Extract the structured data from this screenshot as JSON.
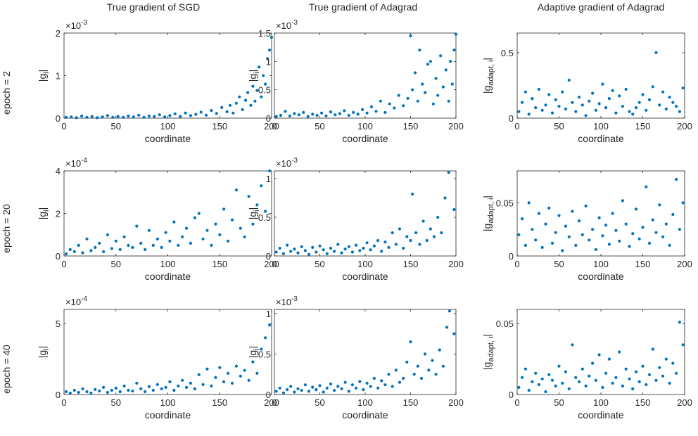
{
  "figure": {
    "column_titles": [
      "True gradient of SGD",
      "True gradient of Adagrad",
      "Adaptive gradient of Adagrad"
    ],
    "row_labels": [
      "epoch = 2",
      "epoch = 20",
      "epoch = 40"
    ],
    "colors": {
      "marker": "#0072BD",
      "axis": "#262626",
      "text": "#262626"
    }
  },
  "chart_data": [
    {
      "id": "r0c0",
      "type": "scatter",
      "title": "True gradient of SGD",
      "row_label": "epoch = 2",
      "xlabel": "coordinate",
      "ylabel": "|g_i|",
      "xlim": [
        0,
        200
      ],
      "xticks": [
        0,
        50,
        100,
        150,
        200
      ],
      "ylim": [
        0,
        2
      ],
      "yticks": [
        0,
        1,
        2
      ],
      "ytick_labels": [
        "0",
        "1",
        "2"
      ],
      "exponent": "-3",
      "x": [
        2,
        7,
        12,
        17,
        22,
        27,
        32,
        37,
        42,
        47,
        52,
        57,
        62,
        67,
        72,
        77,
        82,
        87,
        92,
        97,
        102,
        107,
        112,
        117,
        122,
        127,
        132,
        137,
        142,
        147,
        152,
        157,
        160,
        163,
        166,
        169,
        172,
        175,
        177,
        180,
        182,
        184,
        186,
        188,
        190,
        192,
        194,
        196,
        198,
        200
      ],
      "y": [
        0.02,
        0.03,
        0.01,
        0.05,
        0.02,
        0.04,
        0.01,
        0.03,
        0.06,
        0.02,
        0.04,
        0.02,
        0.05,
        0.03,
        0.07,
        0.02,
        0.05,
        0.04,
        0.08,
        0.03,
        0.06,
        0.1,
        0.04,
        0.12,
        0.06,
        0.09,
        0.14,
        0.07,
        0.18,
        0.11,
        0.25,
        0.15,
        0.3,
        0.12,
        0.35,
        0.5,
        0.2,
        0.42,
        0.6,
        0.3,
        0.75,
        0.4,
        0.65,
        1.2,
        0.5,
        1.0,
        0.8,
        1.4,
        1.6,
        1.9
      ]
    },
    {
      "id": "r0c1",
      "type": "scatter",
      "title": "True gradient of Adagrad",
      "row_label": "epoch = 2",
      "xlabel": "coordinate",
      "ylabel": "|g_i|",
      "xlim": [
        0,
        200
      ],
      "xticks": [
        0,
        50,
        100,
        150,
        200
      ],
      "ylim": [
        0,
        1.5
      ],
      "yticks": [
        0,
        0.5,
        1,
        1.5
      ],
      "ytick_labels": [
        "0",
        "0.5",
        "1",
        "1.5"
      ],
      "exponent": "-3",
      "x": [
        2,
        7,
        12,
        17,
        22,
        27,
        32,
        37,
        42,
        47,
        52,
        57,
        62,
        67,
        72,
        77,
        82,
        87,
        92,
        97,
        102,
        107,
        112,
        117,
        122,
        127,
        132,
        137,
        142,
        147,
        150,
        152,
        155,
        158,
        160,
        163,
        166,
        169,
        172,
        175,
        178,
        180,
        183,
        186,
        189,
        192,
        194,
        196,
        198,
        200
      ],
      "y": [
        0.03,
        0.05,
        0.12,
        0.04,
        0.08,
        0.06,
        0.1,
        0.03,
        0.07,
        0.05,
        0.09,
        0.04,
        0.11,
        0.06,
        0.08,
        0.13,
        0.05,
        0.1,
        0.07,
        0.15,
        0.09,
        0.2,
        0.12,
        0.3,
        0.1,
        0.25,
        0.18,
        0.4,
        0.22,
        0.35,
        1.45,
        0.5,
        0.8,
        0.3,
        1.2,
        0.6,
        0.45,
        0.95,
        1.0,
        0.25,
        0.7,
        0.4,
        1.1,
        0.55,
        0.85,
        0.3,
        1.0,
        0.6,
        1.2,
        1.48
      ]
    },
    {
      "id": "r0c2",
      "type": "scatter",
      "title": "Adaptive gradient of Adagrad",
      "row_label": "epoch = 2",
      "xlabel": "coordinate",
      "ylabel": "|g_adapt,i|",
      "xlim": [
        0,
        200
      ],
      "xticks": [
        0,
        50,
        100,
        150,
        200
      ],
      "ylim": [
        0,
        0.65
      ],
      "yticks": [
        0,
        0.5
      ],
      "ytick_labels": [
        "0",
        "0.5"
      ],
      "exponent": "",
      "x": [
        2,
        6,
        10,
        14,
        18,
        22,
        26,
        30,
        34,
        38,
        42,
        46,
        50,
        54,
        58,
        62,
        66,
        70,
        74,
        78,
        82,
        86,
        90,
        94,
        98,
        102,
        106,
        110,
        114,
        118,
        122,
        126,
        130,
        134,
        138,
        142,
        146,
        150,
        154,
        158,
        162,
        166,
        170,
        174,
        178,
        182,
        186,
        190,
        194,
        198
      ],
      "y": [
        0.05,
        0.12,
        0.2,
        0.03,
        0.15,
        0.08,
        0.22,
        0.06,
        0.1,
        0.18,
        0.04,
        0.14,
        0.09,
        0.2,
        0.07,
        0.29,
        0.12,
        0.05,
        0.16,
        0.1,
        0.02,
        0.13,
        0.19,
        0.06,
        0.11,
        0.26,
        0.08,
        0.15,
        0.21,
        0.04,
        0.17,
        0.09,
        0.22,
        0.05,
        0.03,
        0.08,
        0.12,
        0.18,
        0.06,
        0.14,
        0.24,
        0.5,
        0.1,
        0.2,
        0.07,
        0.16,
        0.12,
        0.09,
        0.05,
        0.23
      ]
    },
    {
      "id": "r1c0",
      "type": "scatter",
      "title": "True gradient of SGD",
      "row_label": "epoch = 20",
      "xlabel": "coordinate",
      "ylabel": "|g_i|",
      "xlim": [
        0,
        200
      ],
      "xticks": [
        0,
        50,
        100,
        150,
        200
      ],
      "ylim": [
        0,
        4
      ],
      "yticks": [
        0,
        2,
        4
      ],
      "ytick_labels": [
        "0",
        "2",
        "4"
      ],
      "exponent": "-4",
      "x": [
        2,
        6,
        10,
        14,
        18,
        22,
        26,
        30,
        34,
        38,
        42,
        46,
        50,
        54,
        58,
        62,
        66,
        70,
        74,
        78,
        82,
        86,
        90,
        94,
        98,
        102,
        106,
        110,
        114,
        118,
        122,
        126,
        130,
        134,
        138,
        142,
        146,
        150,
        154,
        158,
        162,
        166,
        170,
        174,
        178,
        182,
        186,
        190,
        194,
        198
      ],
      "y": [
        0.1,
        0.3,
        0.2,
        0.5,
        0.15,
        0.8,
        0.25,
        0.4,
        0.6,
        0.2,
        1.0,
        0.35,
        0.7,
        0.3,
        0.9,
        0.5,
        0.4,
        1.4,
        0.6,
        0.3,
        1.2,
        0.5,
        0.8,
        0.4,
        1.1,
        0.7,
        1.6,
        0.5,
        0.9,
        1.3,
        0.6,
        1.8,
        2.0,
        0.8,
        1.2,
        0.5,
        1.5,
        1.0,
        2.2,
        0.7,
        1.7,
        3.1,
        1.3,
        0.9,
        2.8,
        1.5,
        2.4,
        3.3,
        2.1,
        4.0
      ]
    },
    {
      "id": "r1c1",
      "type": "scatter",
      "title": "True gradient of Adagrad",
      "row_label": "epoch = 20",
      "xlabel": "coordinate",
      "ylabel": "|g_i|",
      "xlim": [
        0,
        200
      ],
      "xticks": [
        0,
        50,
        100,
        150,
        200
      ],
      "ylim": [
        0,
        1.1
      ],
      "yticks": [
        0,
        0.5,
        1
      ],
      "ytick_labels": [
        "0",
        "0.5",
        "1"
      ],
      "exponent": "-3",
      "x": [
        2,
        6,
        10,
        14,
        18,
        22,
        26,
        30,
        34,
        38,
        42,
        46,
        50,
        54,
        58,
        62,
        66,
        70,
        74,
        78,
        82,
        86,
        90,
        94,
        98,
        102,
        106,
        110,
        114,
        118,
        122,
        126,
        130,
        134,
        138,
        142,
        146,
        150,
        152,
        156,
        160,
        164,
        168,
        172,
        176,
        180,
        184,
        188,
        192,
        198
      ],
      "y": [
        0.05,
        0.1,
        0.03,
        0.14,
        0.06,
        0.09,
        0.04,
        0.12,
        0.07,
        0.02,
        0.11,
        0.05,
        0.13,
        0.08,
        0.03,
        0.1,
        0.06,
        0.15,
        0.04,
        0.09,
        0.12,
        0.05,
        0.14,
        0.07,
        0.1,
        0.17,
        0.08,
        0.13,
        0.2,
        0.06,
        0.18,
        0.11,
        0.3,
        0.15,
        0.35,
        0.1,
        0.25,
        0.2,
        0.8,
        0.3,
        0.15,
        0.45,
        0.2,
        0.35,
        0.25,
        0.5,
        0.3,
        0.75,
        1.08,
        0.6
      ]
    },
    {
      "id": "r1c2",
      "type": "scatter",
      "title": "Adaptive gradient of Adagrad",
      "row_label": "epoch = 20",
      "xlabel": "coordinate",
      "ylabel": "|g_adapt,i|",
      "xlim": [
        0,
        200
      ],
      "xticks": [
        0,
        50,
        100,
        150,
        200
      ],
      "ylim": [
        0,
        0.08
      ],
      "yticks": [
        0,
        0.05
      ],
      "ytick_labels": [
        "0",
        "0.05"
      ],
      "exponent": "",
      "x": [
        2,
        6,
        10,
        14,
        18,
        22,
        26,
        30,
        34,
        38,
        42,
        46,
        50,
        54,
        58,
        62,
        66,
        70,
        74,
        78,
        82,
        86,
        90,
        94,
        98,
        102,
        106,
        110,
        114,
        118,
        122,
        126,
        130,
        134,
        138,
        142,
        146,
        150,
        154,
        158,
        162,
        166,
        170,
        174,
        178,
        182,
        186,
        190,
        194,
        198
      ],
      "y": [
        0.02,
        0.035,
        0.01,
        0.05,
        0.025,
        0.015,
        0.04,
        0.008,
        0.03,
        0.045,
        0.012,
        0.022,
        0.038,
        0.005,
        0.028,
        0.018,
        0.042,
        0.01,
        0.033,
        0.02,
        0.047,
        0.015,
        0.025,
        0.006,
        0.036,
        0.019,
        0.029,
        0.011,
        0.04,
        0.024,
        0.014,
        0.052,
        0.03,
        0.009,
        0.021,
        0.044,
        0.016,
        0.027,
        0.065,
        0.012,
        0.034,
        0.022,
        0.048,
        0.018,
        0.03,
        0.01,
        0.039,
        0.072,
        0.025,
        0.05
      ]
    },
    {
      "id": "r2c0",
      "type": "scatter",
      "title": "True gradient of SGD",
      "row_label": "epoch = 40",
      "xlabel": "coordinate",
      "ylabel": "|g_i|",
      "xlim": [
        0,
        200
      ],
      "xticks": [
        0,
        50,
        100,
        150,
        200
      ],
      "ylim": [
        0,
        6
      ],
      "yticks": [
        0,
        5
      ],
      "ytick_labels": [
        "0",
        "5"
      ],
      "exponent": "-4",
      "x": [
        2,
        6,
        10,
        14,
        18,
        22,
        26,
        30,
        34,
        38,
        42,
        46,
        50,
        54,
        58,
        62,
        66,
        70,
        74,
        78,
        82,
        86,
        90,
        94,
        98,
        102,
        106,
        110,
        114,
        118,
        122,
        126,
        130,
        134,
        138,
        142,
        146,
        150,
        154,
        158,
        162,
        166,
        170,
        174,
        178,
        182,
        186,
        190,
        194,
        198
      ],
      "y": [
        0.2,
        0.1,
        0.3,
        0.15,
        0.4,
        0.2,
        0.1,
        0.35,
        0.25,
        0.5,
        0.15,
        0.3,
        0.45,
        0.2,
        0.6,
        0.3,
        0.25,
        0.8,
        0.4,
        0.2,
        0.55,
        0.3,
        0.7,
        0.4,
        0.5,
        0.9,
        0.3,
        0.6,
        1.0,
        0.5,
        0.8,
        0.4,
        1.4,
        0.7,
        1.8,
        0.6,
        1.2,
        1.9,
        0.9,
        1.5,
        0.8,
        2.0,
        1.3,
        1.7,
        1.0,
        2.3,
        1.5,
        3.2,
        4.0,
        4.9
      ]
    },
    {
      "id": "r2c1",
      "type": "scatter",
      "title": "True gradient of Adagrad",
      "row_label": "epoch = 40",
      "xlabel": "coordinate",
      "ylabel": "|g_i|",
      "xlim": [
        0,
        200
      ],
      "xticks": [
        0,
        50,
        100,
        150,
        200
      ],
      "ylim": [
        0,
        1.05
      ],
      "yticks": [
        0,
        0.5,
        1
      ],
      "ytick_labels": [
        "0",
        "0.5",
        "1"
      ],
      "exponent": "-3",
      "x": [
        2,
        6,
        10,
        14,
        18,
        22,
        26,
        30,
        34,
        38,
        42,
        46,
        50,
        54,
        58,
        62,
        66,
        70,
        74,
        78,
        82,
        86,
        90,
        94,
        98,
        102,
        106,
        110,
        114,
        118,
        122,
        126,
        130,
        134,
        138,
        142,
        146,
        150,
        154,
        158,
        162,
        166,
        170,
        174,
        178,
        182,
        186,
        190,
        193,
        198
      ],
      "y": [
        0.04,
        0.08,
        0.02,
        0.06,
        0.1,
        0.03,
        0.07,
        0.05,
        0.12,
        0.04,
        0.09,
        0.06,
        0.11,
        0.03,
        0.08,
        0.13,
        0.05,
        0.1,
        0.07,
        0.15,
        0.04,
        0.12,
        0.08,
        0.16,
        0.06,
        0.14,
        0.1,
        0.2,
        0.08,
        0.17,
        0.12,
        0.25,
        0.1,
        0.3,
        0.15,
        0.2,
        0.4,
        0.65,
        0.25,
        0.35,
        0.2,
        0.5,
        0.3,
        0.42,
        0.25,
        0.55,
        0.35,
        0.83,
        1.03,
        0.75
      ]
    },
    {
      "id": "r2c2",
      "type": "scatter",
      "title": "Adaptive gradient of Adagrad",
      "row_label": "epoch = 40",
      "xlabel": "coordinate",
      "ylabel": "|g_adapt,i|",
      "xlim": [
        0,
        200
      ],
      "xticks": [
        0,
        50,
        100,
        150,
        200
      ],
      "ylim": [
        0,
        0.06
      ],
      "yticks": [
        0,
        0.05
      ],
      "ytick_labels": [
        "0",
        "0.05"
      ],
      "exponent": "",
      "x": [
        2,
        6,
        10,
        14,
        18,
        22,
        26,
        30,
        34,
        38,
        42,
        46,
        50,
        54,
        58,
        62,
        66,
        70,
        74,
        78,
        82,
        86,
        90,
        94,
        98,
        102,
        106,
        110,
        114,
        118,
        122,
        126,
        130,
        134,
        138,
        142,
        146,
        150,
        154,
        158,
        162,
        166,
        170,
        174,
        178,
        182,
        186,
        190,
        194,
        198
      ],
      "y": [
        0.005,
        0.012,
        0.018,
        0.003,
        0.009,
        0.015,
        0.007,
        0.011,
        0.002,
        0.014,
        0.01,
        0.006,
        0.02,
        0.008,
        0.016,
        0.004,
        0.035,
        0.012,
        0.009,
        0.018,
        0.006,
        0.013,
        0.022,
        0.01,
        0.028,
        0.005,
        0.015,
        0.025,
        0.008,
        0.012,
        0.03,
        0.006,
        0.018,
        0.011,
        0.004,
        0.016,
        0.009,
        0.02,
        0.007,
        0.014,
        0.032,
        0.01,
        0.019,
        0.013,
        0.025,
        0.008,
        0.022,
        0.015,
        0.051,
        0.035
      ]
    }
  ]
}
